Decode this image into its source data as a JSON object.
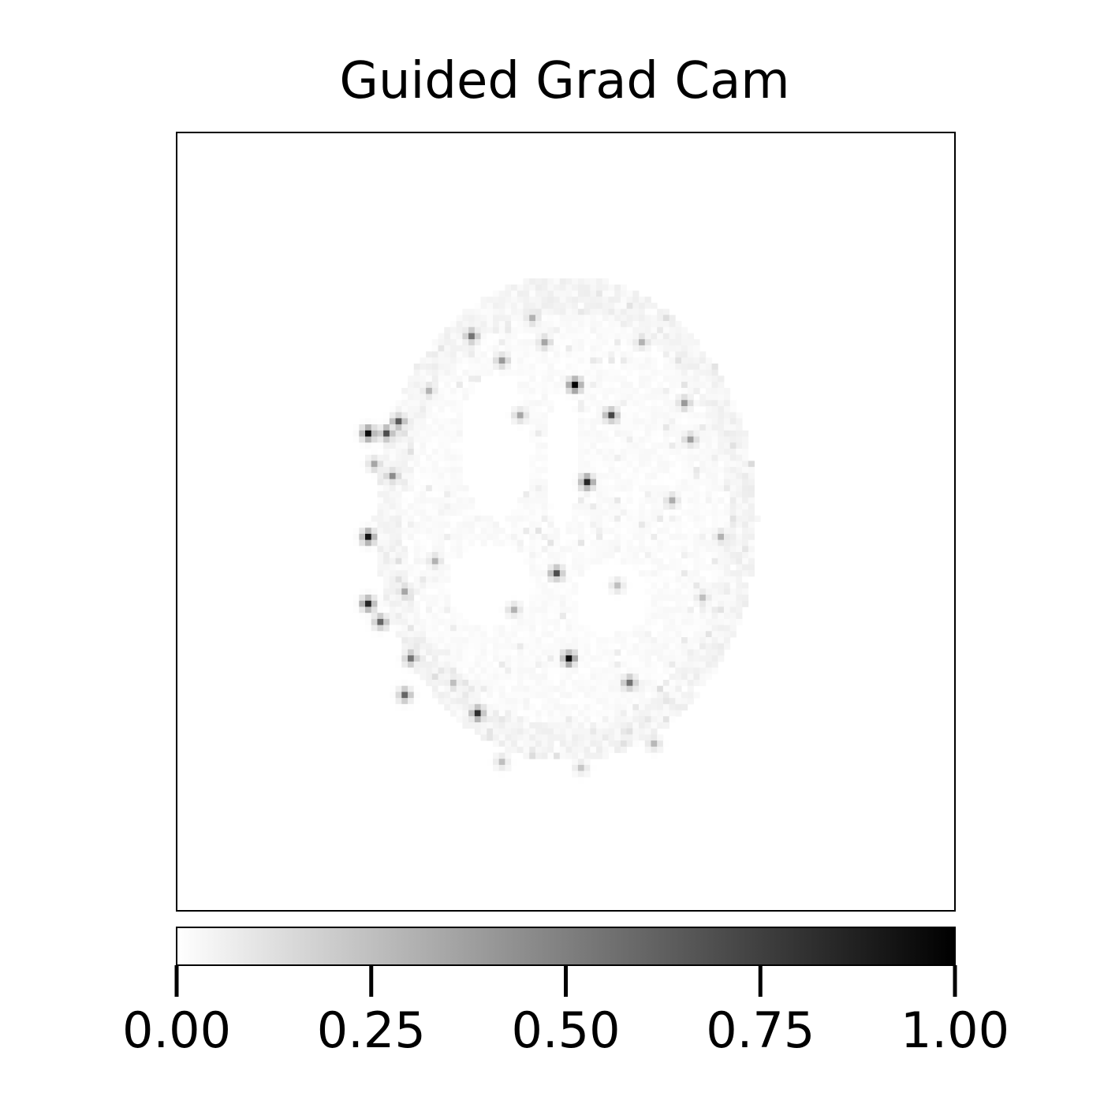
{
  "chart_data": {
    "type": "heatmap",
    "title": "Guided Grad Cam",
    "xlabel": "",
    "ylabel": "",
    "x_ticks_visible": false,
    "y_ticks_visible": false,
    "colormap": "Greys",
    "colormap_colors": [
      "#ffffff",
      "#000000"
    ],
    "colorbar": {
      "orientation": "horizontal",
      "placement": "bottom",
      "range": [
        0,
        1
      ],
      "ticks": [
        0,
        0.25,
        0.5,
        0.75,
        1
      ],
      "tick_labels": [
        "0.00",
        "0.25",
        "0.50",
        "0.75",
        "1.00"
      ]
    },
    "image_size": [
      128,
      128
    ],
    "brain_region": {
      "shape": "ellipse",
      "center": [
        63.5,
        63
      ],
      "radius": [
        31.5,
        40
      ],
      "baseline_value": 0.03
    },
    "hotspots": [
      {
        "x": 65,
        "y": 41,
        "value": 0.98
      },
      {
        "x": 31,
        "y": 49,
        "value": 0.95
      },
      {
        "x": 31,
        "y": 66,
        "value": 0.92
      },
      {
        "x": 31,
        "y": 77,
        "value": 0.85
      },
      {
        "x": 67,
        "y": 57,
        "value": 0.85
      },
      {
        "x": 64,
        "y": 86,
        "value": 0.95
      },
      {
        "x": 49,
        "y": 95,
        "value": 0.82
      },
      {
        "x": 36,
        "y": 47,
        "value": 0.65
      },
      {
        "x": 34,
        "y": 49,
        "value": 0.7
      },
      {
        "x": 48,
        "y": 33,
        "value": 0.55
      },
      {
        "x": 71,
        "y": 46,
        "value": 0.72
      },
      {
        "x": 62,
        "y": 72,
        "value": 0.7
      },
      {
        "x": 33,
        "y": 80,
        "value": 0.6
      },
      {
        "x": 37,
        "y": 92,
        "value": 0.6
      },
      {
        "x": 38,
        "y": 86,
        "value": 0.55
      },
      {
        "x": 74,
        "y": 90,
        "value": 0.55
      },
      {
        "x": 53,
        "y": 37,
        "value": 0.4
      },
      {
        "x": 83,
        "y": 44,
        "value": 0.4
      },
      {
        "x": 84,
        "y": 50,
        "value": 0.38
      },
      {
        "x": 56,
        "y": 46,
        "value": 0.35
      },
      {
        "x": 81,
        "y": 60,
        "value": 0.32
      },
      {
        "x": 89,
        "y": 66,
        "value": 0.3
      },
      {
        "x": 35,
        "y": 56,
        "value": 0.45
      },
      {
        "x": 32,
        "y": 54,
        "value": 0.35
      },
      {
        "x": 41,
        "y": 42,
        "value": 0.3
      },
      {
        "x": 60,
        "y": 34,
        "value": 0.35
      },
      {
        "x": 58,
        "y": 30,
        "value": 0.3
      },
      {
        "x": 76,
        "y": 34,
        "value": 0.3
      },
      {
        "x": 42,
        "y": 70,
        "value": 0.3
      },
      {
        "x": 37,
        "y": 75,
        "value": 0.35
      },
      {
        "x": 55,
        "y": 78,
        "value": 0.3
      },
      {
        "x": 78,
        "y": 100,
        "value": 0.28
      },
      {
        "x": 53,
        "y": 103,
        "value": 0.25
      },
      {
        "x": 66,
        "y": 104,
        "value": 0.22
      },
      {
        "x": 45,
        "y": 90,
        "value": 0.25
      },
      {
        "x": 86,
        "y": 76,
        "value": 0.25
      },
      {
        "x": 72,
        "y": 74,
        "value": 0.25
      }
    ],
    "ventricles": [
      {
        "center": [
          52,
          51
        ],
        "radius": [
          6,
          12
        ],
        "value": 0.0
      },
      {
        "center": [
          63,
          53
        ],
        "radius": [
          2.5,
          12
        ],
        "value": 0.0
      },
      {
        "center": [
          51,
          74
        ],
        "radius": [
          7,
          7
        ],
        "value": 0.0
      },
      {
        "center": [
          71,
          76
        ],
        "radius": [
          6,
          6
        ],
        "value": 0.0
      }
    ]
  }
}
